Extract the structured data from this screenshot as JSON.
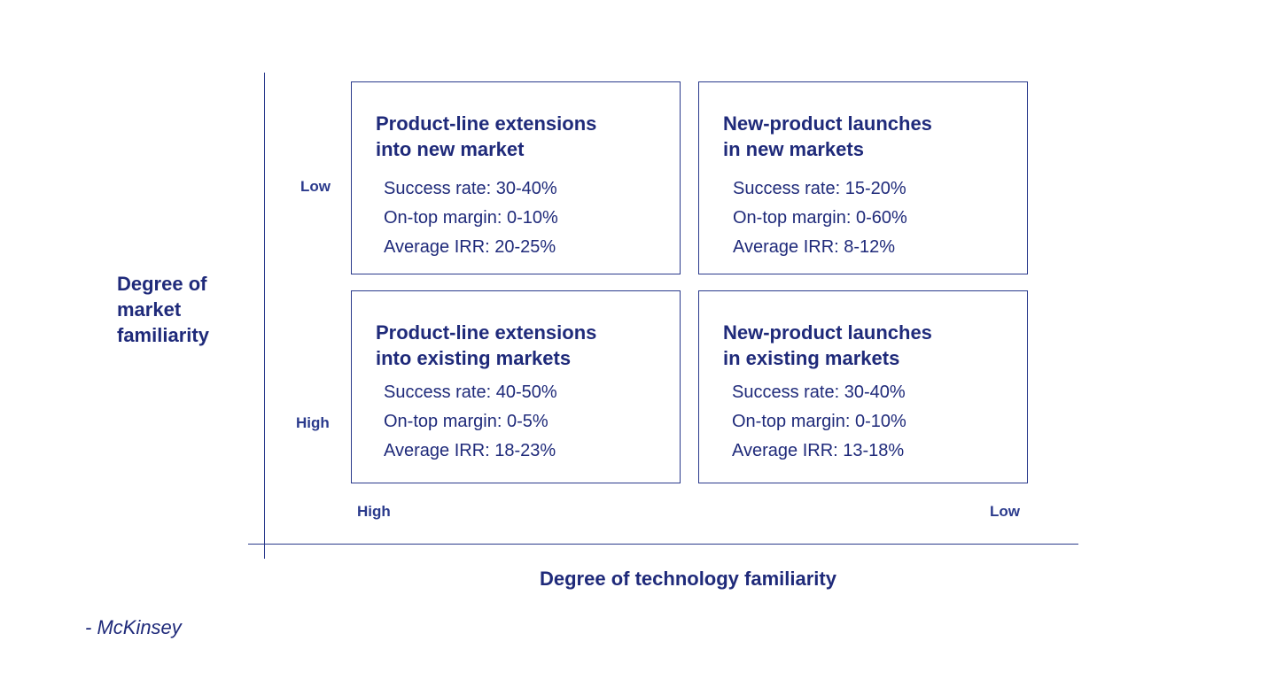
{
  "y_axis": {
    "title_lines": [
      "Degree of",
      "market",
      "familiarity"
    ],
    "top_label": "Low",
    "bottom_label": "High"
  },
  "x_axis": {
    "title": "Degree of technology familiarity",
    "left_label": "High",
    "right_label": "Low"
  },
  "quadrants": {
    "top_left": {
      "title_lines": [
        "Product-line extensions",
        "into new market"
      ],
      "metrics": [
        "Success rate: 30-40%",
        "On-top margin: 0-10%",
        "Average IRR: 20-25%"
      ]
    },
    "top_right": {
      "title_lines": [
        "New-product launches",
        "in new markets"
      ],
      "metrics": [
        "Success rate: 15-20%",
        "On-top margin: 0-60%",
        "Average IRR: 8-12%"
      ]
    },
    "bottom_left": {
      "title_lines": [
        "Product-line extensions",
        "into existing markets"
      ],
      "metrics": [
        "Success rate: 40-50%",
        "On-top margin: 0-5%",
        "Average IRR: 18-23%"
      ]
    },
    "bottom_right": {
      "title_lines": [
        "New-product launches",
        "in existing markets"
      ],
      "metrics": [
        "Success rate: 30-40%",
        "On-top margin: 0-10%",
        "Average IRR: 13-18%"
      ]
    }
  },
  "source": "- McKinsey",
  "colors": {
    "text": "#1f2a7a",
    "lines": "#2a3a8c",
    "background": "#ffffff"
  }
}
